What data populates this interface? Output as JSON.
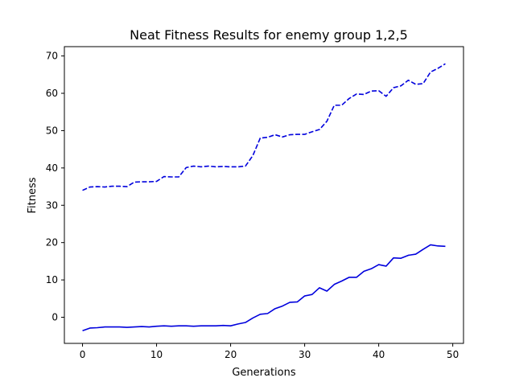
{
  "chart_data": {
    "type": "line",
    "title": "Neat Fitness Results for enemy group 1,2,5",
    "xlabel": "Generations",
    "ylabel": "Fitness",
    "xlim": [
      -2.45,
      51.45
    ],
    "ylim": [
      -7.0,
      72.5
    ],
    "xticks": [
      0,
      10,
      20,
      30,
      40,
      50
    ],
    "yticks": [
      0,
      10,
      20,
      30,
      40,
      50,
      60,
      70
    ],
    "grid": false,
    "legend": "none",
    "colors": {
      "series": "#0000dd",
      "axis": "#000000"
    },
    "x": [
      0,
      1,
      2,
      3,
      4,
      5,
      6,
      7,
      8,
      9,
      10,
      11,
      12,
      13,
      14,
      15,
      16,
      17,
      18,
      19,
      20,
      21,
      22,
      23,
      24,
      25,
      26,
      27,
      28,
      29,
      30,
      31,
      32,
      33,
      34,
      35,
      36,
      37,
      38,
      39,
      40,
      41,
      42,
      43,
      44,
      45,
      46,
      47,
      48,
      49
    ],
    "series": [
      {
        "style": "dashed",
        "values": [
          34.0,
          34.9,
          35.0,
          34.9,
          35.1,
          35.1,
          35.0,
          36.2,
          36.3,
          36.3,
          36.4,
          37.7,
          37.6,
          37.6,
          40.1,
          40.5,
          40.3,
          40.5,
          40.3,
          40.4,
          40.3,
          40.3,
          40.5,
          43.3,
          48.0,
          48.2,
          48.9,
          48.3,
          48.9,
          49.0,
          49.0,
          49.7,
          50.3,
          52.5,
          56.8,
          56.8,
          58.6,
          59.8,
          59.7,
          60.6,
          60.7,
          59.2,
          61.5,
          62.0,
          63.5,
          62.4,
          62.6,
          65.7,
          66.7,
          67.9
        ]
      },
      {
        "style": "solid",
        "values": [
          -3.6,
          -2.9,
          -2.8,
          -2.6,
          -2.6,
          -2.6,
          -2.7,
          -2.6,
          -2.5,
          -2.6,
          -2.4,
          -2.3,
          -2.4,
          -2.3,
          -2.3,
          -2.4,
          -2.3,
          -2.3,
          -2.3,
          -2.2,
          -2.3,
          -1.8,
          -1.4,
          -0.2,
          0.8,
          1.0,
          2.3,
          3.0,
          4.0,
          4.1,
          5.7,
          6.1,
          7.9,
          7.0,
          8.8,
          9.7,
          10.7,
          10.7,
          12.3,
          13.0,
          14.1,
          13.7,
          15.9,
          15.8,
          16.6,
          16.9,
          18.2,
          19.4,
          19.1,
          19.0
        ]
      }
    ]
  }
}
